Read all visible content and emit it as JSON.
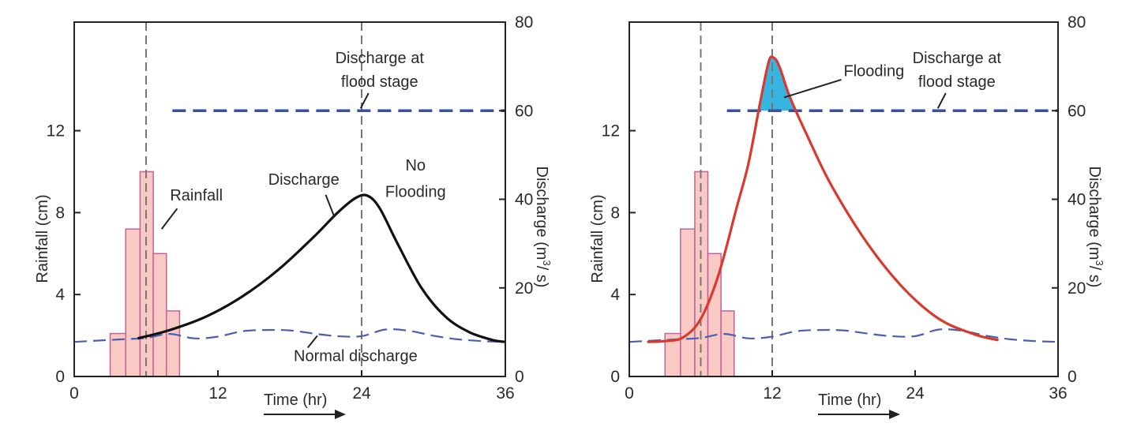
{
  "chart_data": [
    {
      "type": "line",
      "panel": "left",
      "xlabel": "Time (hr)",
      "ylabel_left": "Rainfall (cm)",
      "ylabel_right": "Discharge (m3/ s)",
      "ylabel_right_parts": [
        "Discharge (m",
        "3",
        "/ s)"
      ],
      "x_ticks": [
        0,
        12,
        24,
        36
      ],
      "y_left_ticks": [
        0,
        4,
        8,
        12
      ],
      "y_right_ticks": [
        0,
        20,
        40,
        60,
        80
      ],
      "xlim": [
        0,
        36
      ],
      "ylim_left": [
        0,
        17.3
      ],
      "ylim_right": [
        0,
        80
      ],
      "grid": false,
      "rainfall": {
        "name": "Rainfall",
        "bars": [
          {
            "x0": 3,
            "x1": 4.3,
            "value": 2.1
          },
          {
            "x0": 4.3,
            "x1": 5.5,
            "value": 7.2
          },
          {
            "x0": 5.5,
            "x1": 6.6,
            "value": 10.0
          },
          {
            "x0": 6.6,
            "x1": 7.7,
            "value": 6.0
          },
          {
            "x0": 7.7,
            "x1": 8.8,
            "value": 3.2
          }
        ]
      },
      "flood_stage": {
        "name": "Discharge at flood stage",
        "value": 60,
        "x_start": 8.2,
        "x_end": 36
      },
      "normal_discharge": {
        "name": "Normal discharge",
        "x": [
          0,
          2,
          4,
          6,
          8,
          10,
          12,
          14,
          16,
          18,
          20,
          22,
          24,
          26,
          28,
          30,
          32,
          34,
          36
        ],
        "y": [
          7.8,
          8.1,
          8.4,
          8.7,
          9.6,
          8.6,
          9.0,
          10.2,
          10.5,
          10.4,
          9.7,
          9.1,
          9.1,
          10.6,
          10.3,
          9.2,
          8.4,
          8.0,
          7.8
        ]
      },
      "discharge": {
        "name": "Discharge",
        "color": "#111111",
        "x": [
          5.3,
          8,
          11,
          14,
          17,
          20,
          22,
          23.5,
          24.5,
          25.5,
          27,
          29,
          31,
          33,
          35,
          36
        ],
        "y": [
          8.6,
          10.5,
          13.5,
          18,
          24,
          31.5,
          37,
          40.3,
          40.8,
          38,
          30,
          20,
          13.5,
          10,
          8.2,
          7.8
        ]
      },
      "vlines": [
        6,
        24
      ],
      "annotations": {
        "rainfall": "Rainfall",
        "discharge": "Discharge",
        "no_flooding": [
          "No",
          "Flooding"
        ],
        "flood_stage": [
          "Discharge at",
          "flood stage"
        ],
        "normal_discharge": "Normal discharge"
      }
    },
    {
      "type": "line",
      "panel": "right",
      "xlabel": "Time (hr)",
      "ylabel_left": "Rainfall (cm)",
      "ylabel_right": "Discharge (m3/ s)",
      "ylabel_right_parts": [
        "Discharge (m",
        "3",
        "/ s)"
      ],
      "x_ticks": [
        0,
        12,
        24,
        36
      ],
      "y_left_ticks": [
        0,
        4,
        8,
        12
      ],
      "y_right_ticks": [
        0,
        20,
        40,
        60,
        80
      ],
      "xlim": [
        0,
        36
      ],
      "ylim_left": [
        0,
        17.3
      ],
      "ylim_right": [
        0,
        80
      ],
      "grid": false,
      "rainfall": {
        "name": "Rainfall",
        "bars": [
          {
            "x0": 3,
            "x1": 4.3,
            "value": 2.1
          },
          {
            "x0": 4.3,
            "x1": 5.5,
            "value": 7.2
          },
          {
            "x0": 5.5,
            "x1": 6.6,
            "value": 10.0
          },
          {
            "x0": 6.6,
            "x1": 7.7,
            "value": 6.0
          },
          {
            "x0": 7.7,
            "x1": 8.8,
            "value": 3.2
          }
        ]
      },
      "flood_stage": {
        "name": "Discharge at flood stage",
        "value": 60,
        "x_start": 8.2,
        "x_end": 36
      },
      "normal_discharge": {
        "name": "Normal discharge",
        "x": [
          0,
          2,
          4,
          6,
          8,
          10,
          12,
          14,
          16,
          18,
          20,
          22,
          24,
          26,
          28,
          30,
          32,
          34,
          36
        ],
        "y": [
          7.8,
          8.1,
          8.4,
          8.7,
          9.6,
          8.6,
          9.0,
          10.2,
          10.5,
          10.4,
          9.7,
          9.1,
          9.1,
          10.6,
          10.3,
          9.2,
          8.4,
          8.0,
          7.8
        ]
      },
      "discharge": {
        "name": "Discharge",
        "color": "#d93a2e",
        "x": [
          1.5,
          3,
          4.5,
          6,
          7.5,
          9,
          10,
          11,
          11.7,
          12.1,
          12.6,
          13.5,
          15,
          17,
          20,
          23,
          26,
          29,
          31
        ],
        "y": [
          7.8,
          8.0,
          8.8,
          13,
          23,
          38,
          48,
          62,
          71,
          72,
          70,
          63,
          54,
          43,
          30,
          20,
          13,
          9.5,
          8.2
        ]
      },
      "flooding_fill_color": "#38b4e0",
      "vlines": [
        6,
        12
      ],
      "annotations": {
        "flooding": "Flooding",
        "flood_stage": [
          "Discharge at",
          "flood stage"
        ]
      }
    }
  ]
}
